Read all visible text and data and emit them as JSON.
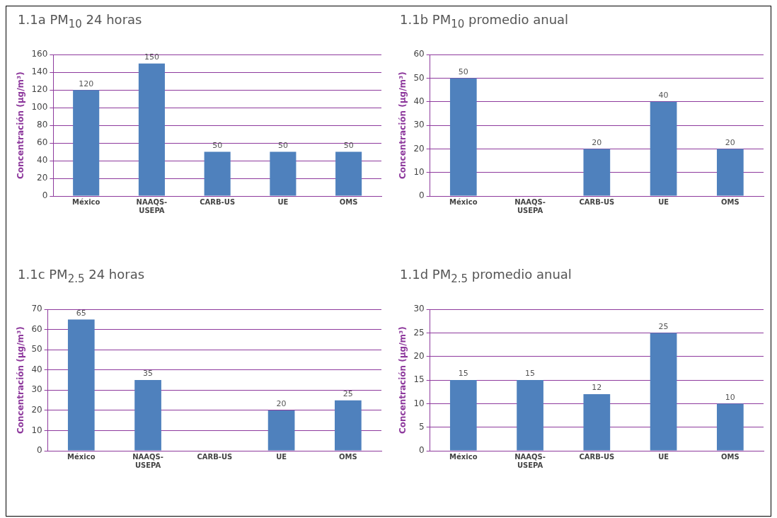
{
  "chart_data": [
    {
      "type": "bar",
      "title": "1.1a PM$_{10}$  24 horas",
      "ylabel": "Concentración (µg/m³)",
      "categories": [
        "México",
        "NAAQS-USEPA",
        "CARB-US",
        "UE",
        "OMS"
      ],
      "values": [
        120,
        150,
        50,
        50,
        50
      ],
      "color": "#4f81bd",
      "ylim": [
        0,
        160
      ],
      "yticks": [
        0,
        20,
        40,
        60,
        80,
        100,
        120,
        140,
        160
      ],
      "grid": "y",
      "data_labels": true,
      "legend": false
    },
    {
      "type": "bar",
      "title": "1.1b PM$_{10}$  promedio anual",
      "ylabel": "Concentración (µg/m³)",
      "categories": [
        "México",
        "NAAQS-USEPA",
        "CARB-US",
        "UE",
        "OMS"
      ],
      "values": [
        50,
        null,
        20,
        40,
        20
      ],
      "color": "#4f81bd",
      "ylim": [
        0,
        60
      ],
      "yticks": [
        0,
        10,
        20,
        30,
        40,
        50,
        60
      ],
      "grid": "y",
      "data_labels": true,
      "legend": false
    },
    {
      "type": "bar",
      "title": "1.1c  PM$_{2.5}$  24 horas",
      "ylabel": "Concentración (µg/m³)",
      "categories": [
        "México",
        "NAAQS-USEPA",
        "CARB-US",
        "UE",
        "OMS"
      ],
      "values": [
        65,
        35,
        null,
        20,
        25
      ],
      "color": "#4f81bd",
      "ylim": [
        0,
        70
      ],
      "yticks": [
        0,
        10,
        20,
        30,
        40,
        50,
        60,
        70
      ],
      "grid": "y",
      "data_labels": true,
      "legend": false
    },
    {
      "type": "bar",
      "title": "1.1d  PM$_{2.5}$  promedio anual",
      "ylabel": "Concentración (µg/m³)",
      "categories": [
        "México",
        "NAAQS-USEPA",
        "CARB-US",
        "UE",
        "OMS"
      ],
      "values": [
        15,
        15,
        12,
        25,
        10
      ],
      "color": "#4f81bd",
      "ylim": [
        0,
        30
      ],
      "yticks": [
        0,
        5,
        10,
        15,
        20,
        25,
        30
      ],
      "grid": "y",
      "data_labels": true,
      "legend": false
    }
  ]
}
